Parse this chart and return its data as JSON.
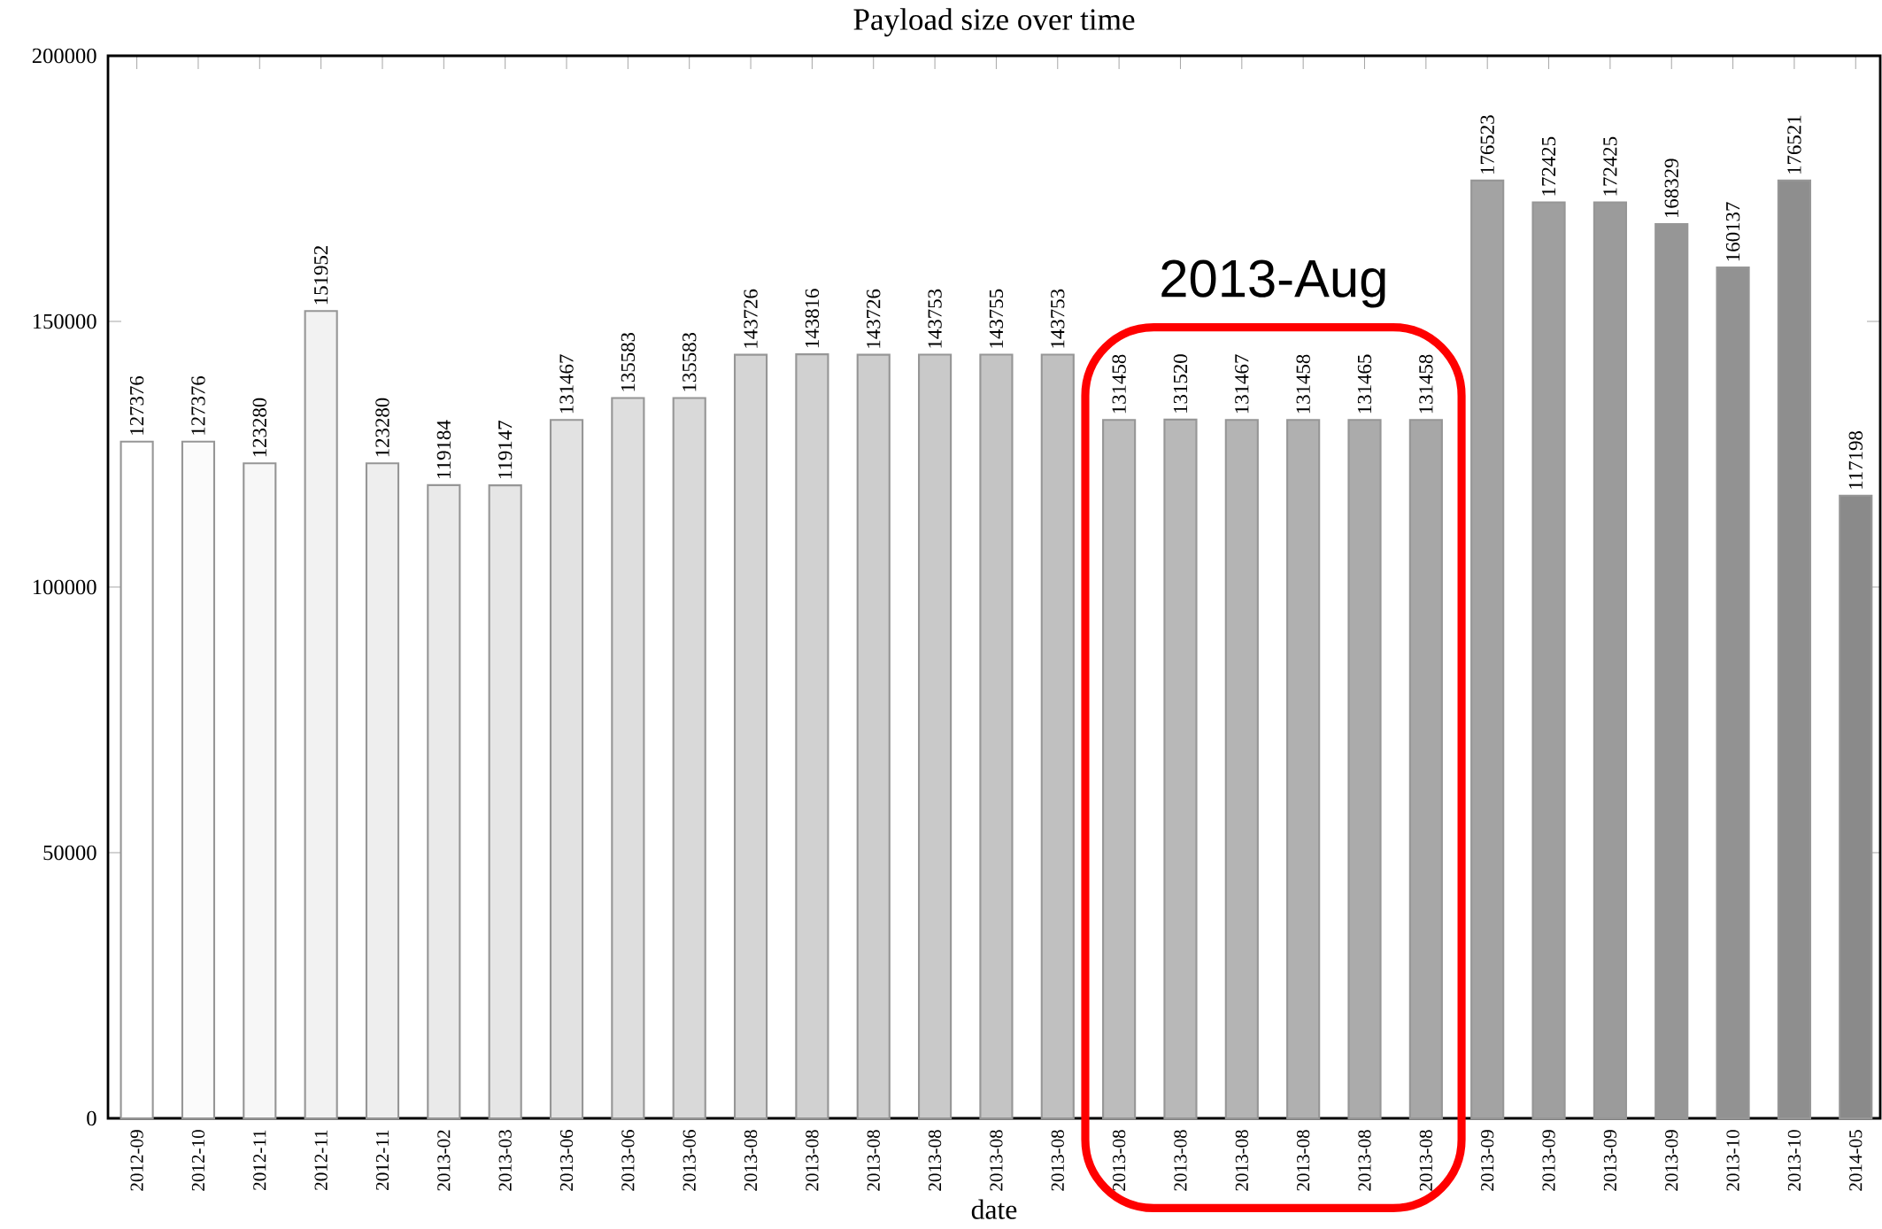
{
  "chart_data": {
    "type": "bar",
    "title": "Payload size over time",
    "xlabel": "date",
    "categories": [
      "2012-09",
      "2012-10",
      "2012-11",
      "2012-11",
      "2012-11",
      "2013-02",
      "2013-03",
      "2013-06",
      "2013-06",
      "2013-06",
      "2013-08",
      "2013-08",
      "2013-08",
      "2013-08",
      "2013-08",
      "2013-08",
      "2013-08",
      "2013-08",
      "2013-08",
      "2013-08",
      "2013-08",
      "2013-08",
      "2013-09",
      "2013-09",
      "2013-09",
      "2013-09",
      "2013-10",
      "2013-10",
      "2014-05"
    ],
    "values": [
      127376,
      127376,
      123280,
      151952,
      123280,
      119184,
      119147,
      131467,
      135583,
      135583,
      143726,
      143816,
      143726,
      143753,
      143755,
      143753,
      131458,
      131520,
      131467,
      131458,
      131465,
      131458,
      176523,
      172425,
      172425,
      168329,
      160137,
      176521,
      117198
    ],
    "colors": [
      "#ffffff",
      "#fbfbfb",
      "#f7f7f7",
      "#f2f2f2",
      "#eeeeee",
      "#eaeaea",
      "#e6e6e6",
      "#e2e2e2",
      "#dedede",
      "#d9d9d9",
      "#d5d5d5",
      "#d1d1d1",
      "#cdcdcd",
      "#c9c9c9",
      "#c4c4c4",
      "#c0c0c0",
      "#bcbcbc",
      "#b8b8b8",
      "#b4b4b4",
      "#b0b0b0",
      "#ababab",
      "#a7a7a7",
      "#a3a3a3",
      "#9f9f9f",
      "#9b9b9b",
      "#969696",
      "#929292",
      "#8e8e8e",
      "#8a8a8a"
    ],
    "ylim": [
      0,
      200000
    ],
    "yticks": [
      0,
      50000,
      100000,
      150000,
      200000
    ],
    "data_labels": true,
    "annotations": [
      "2013-Aug"
    ]
  }
}
